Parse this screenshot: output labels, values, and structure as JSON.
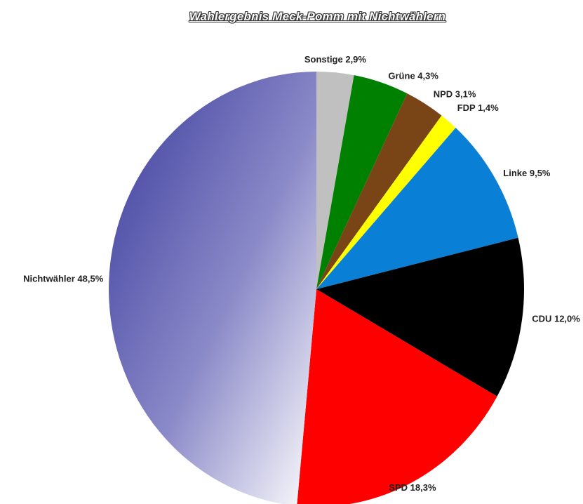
{
  "chart_data": {
    "type": "pie",
    "title": "Wahlergebnis Meck-Pomm mit Nichtwählern",
    "start_angle_deg": 0,
    "direction": "clockwise",
    "legend": "none",
    "slices": [
      {
        "label": "Sonstige",
        "value": 2.9,
        "value_label": "2,9%",
        "color": "#c0c0c0"
      },
      {
        "label": "Grüne",
        "value": 4.3,
        "value_label": "4,3%",
        "color": "#008000"
      },
      {
        "label": "NPD",
        "value": 3.1,
        "value_label": "3,1%",
        "color": "#7a4516"
      },
      {
        "label": "FDP",
        "value": 1.4,
        "value_label": "1,4%",
        "color": "#ffff00"
      },
      {
        "label": "Linke",
        "value": 9.5,
        "value_label": "9,5%",
        "color": "#0a7fd6"
      },
      {
        "label": "CDU",
        "value": 12.0,
        "value_label": "12,0%",
        "color": "#000000"
      },
      {
        "label": "SPD",
        "value": 18.3,
        "value_label": "18,3%",
        "color": "#ff0000"
      },
      {
        "label": "Nichtwähler",
        "value": 48.5,
        "value_label": "48,5%",
        "color": "#3a3a9c",
        "gradient_to": "#ffffff"
      }
    ]
  }
}
